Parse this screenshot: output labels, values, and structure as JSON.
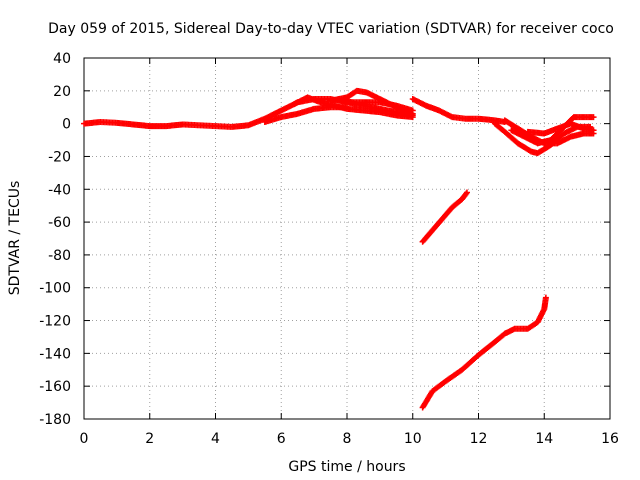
{
  "chart_data": {
    "type": "scatter",
    "title": "Day 059 of 2015, Sidereal Day-to-day VTEC variation (SDTVAR) for receiver coco",
    "xlabel": "GPS time / hours",
    "ylabel": "SDTVAR / TECUs",
    "xlim": [
      0,
      16
    ],
    "ylim": [
      -180,
      40
    ],
    "xticks": [
      0,
      2,
      4,
      6,
      8,
      10,
      12,
      14,
      16
    ],
    "yticks": [
      40,
      20,
      0,
      -20,
      -40,
      -60,
      -80,
      -100,
      -120,
      -140,
      -160,
      -180
    ],
    "grid": true,
    "marker": "+",
    "series_color": "#ff0000",
    "series": [
      {
        "values": [
          [
            0,
            0
          ],
          [
            0.5,
            1
          ],
          [
            1,
            0.5
          ],
          [
            1.5,
            -0.5
          ],
          [
            2,
            -1.5
          ],
          [
            2.5,
            -1.5
          ],
          [
            3,
            -0.5
          ],
          [
            3.5,
            -1
          ],
          [
            4,
            -1.5
          ],
          [
            4.5,
            -2
          ],
          [
            5,
            -1
          ],
          [
            5.5,
            3
          ],
          [
            6,
            8
          ],
          [
            6.5,
            13
          ],
          [
            7,
            15
          ],
          [
            7.5,
            15
          ],
          [
            8,
            13
          ],
          [
            8.5,
            11
          ],
          [
            9,
            9
          ],
          [
            9.5,
            7
          ],
          [
            10,
            5
          ]
        ]
      },
      {
        "values": [
          [
            5.5,
            1
          ],
          [
            6,
            4
          ],
          [
            6.5,
            6
          ],
          [
            7,
            9
          ],
          [
            7.5,
            10
          ],
          [
            8,
            10
          ]
        ]
      },
      {
        "values": [
          [
            6.4,
            12
          ],
          [
            6.8,
            16
          ],
          [
            7.2,
            13
          ],
          [
            7.6,
            11
          ],
          [
            8,
            9
          ],
          [
            8.5,
            8
          ],
          [
            9,
            7
          ],
          [
            9.5,
            5
          ],
          [
            10,
            4
          ]
        ]
      },
      {
        "values": [
          [
            7.5,
            14
          ],
          [
            8,
            16
          ],
          [
            8.3,
            20
          ],
          [
            8.6,
            19
          ],
          [
            9,
            15
          ],
          [
            9.5,
            10
          ],
          [
            10,
            6
          ]
        ]
      },
      {
        "values": [
          [
            7.8,
            14
          ],
          [
            8.2,
            13
          ],
          [
            8.6,
            13
          ],
          [
            9,
            13
          ],
          [
            9.5,
            11
          ],
          [
            10,
            8
          ]
        ]
      },
      {
        "values": [
          [
            10,
            15
          ],
          [
            10.4,
            11
          ],
          [
            10.8,
            8
          ],
          [
            11.2,
            4
          ],
          [
            11.6,
            3
          ],
          [
            12,
            3
          ],
          [
            12.5,
            2
          ],
          [
            12.8,
            1
          ]
        ]
      },
      {
        "values": [
          [
            12.5,
            0
          ],
          [
            12.8,
            -5
          ],
          [
            13.2,
            -12
          ],
          [
            13.6,
            -17
          ],
          [
            13.8,
            -18
          ],
          [
            14.2,
            -13
          ],
          [
            14.6,
            -6
          ],
          [
            15,
            -2
          ],
          [
            15.4,
            -2
          ]
        ]
      },
      {
        "values": [
          [
            12.8,
            2
          ],
          [
            13.2,
            -3
          ],
          [
            13.6,
            -8
          ],
          [
            14,
            -12
          ],
          [
            14.4,
            -12
          ],
          [
            14.8,
            -8
          ],
          [
            15.2,
            -6
          ],
          [
            15.5,
            -6
          ]
        ]
      },
      {
        "values": [
          [
            13,
            -4
          ],
          [
            13.4,
            -8
          ],
          [
            13.8,
            -12
          ],
          [
            14.2,
            -10
          ],
          [
            14.6,
            -2
          ],
          [
            14.9,
            4
          ],
          [
            15.2,
            4
          ],
          [
            15.5,
            4
          ]
        ]
      },
      {
        "values": [
          [
            13.5,
            -5
          ],
          [
            14,
            -6
          ],
          [
            14.4,
            -3
          ],
          [
            14.8,
            0
          ],
          [
            15.2,
            -3
          ],
          [
            15.5,
            -4
          ]
        ]
      },
      {
        "values": [
          [
            10.3,
            -72
          ],
          [
            10.6,
            -65
          ],
          [
            10.9,
            -58
          ],
          [
            11.2,
            -51
          ],
          [
            11.5,
            -46
          ],
          [
            11.65,
            -42
          ]
        ]
      },
      {
        "values": [
          [
            10.3,
            -173
          ],
          [
            10.6,
            -163
          ],
          [
            11,
            -157
          ],
          [
            11.5,
            -150
          ],
          [
            12,
            -141
          ],
          [
            12.5,
            -133
          ],
          [
            12.8,
            -128
          ],
          [
            13.1,
            -125
          ],
          [
            13.5,
            -125
          ],
          [
            13.8,
            -121
          ],
          [
            14,
            -113
          ],
          [
            14.05,
            -106
          ]
        ]
      }
    ]
  }
}
